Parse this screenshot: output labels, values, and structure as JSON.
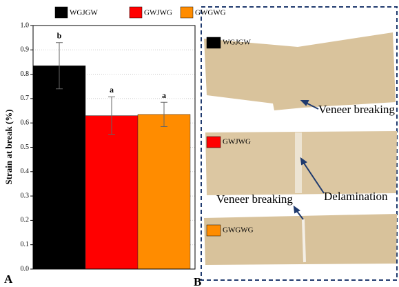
{
  "chart_data": {
    "type": "bar",
    "ylabel": "Strain at break (%)",
    "categories": [
      "WGJGW",
      "GWJWG",
      "GWGWG"
    ],
    "values": [
      0.835,
      0.63,
      0.635
    ],
    "errors": [
      0.095,
      0.077,
      0.05
    ],
    "significance": [
      "b",
      "a",
      "a"
    ],
    "colors": [
      "#000000",
      "#ff0000",
      "#ff8c00"
    ],
    "ylim": [
      0,
      1.0
    ],
    "yticks": [
      {
        "value": 0,
        "label": "0.0"
      },
      0.1,
      0.2,
      0.3,
      0.4,
      0.5,
      0.6,
      0.7,
      0.8,
      0.9,
      {
        "value": 1.0,
        "label": "1.0"
      }
    ],
    "grid": true,
    "legend": "top"
  },
  "panel_labels": [
    "A",
    "B"
  ],
  "photo_panel": {
    "annotations": [
      "Veneer breaking",
      "Delamination",
      "Veneer breaking"
    ]
  }
}
